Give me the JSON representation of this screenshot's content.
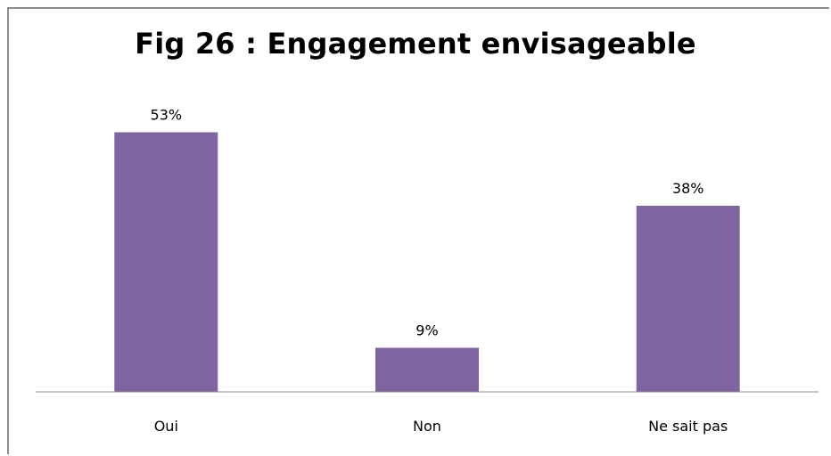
{
  "chart_data": {
    "type": "bar",
    "title": "Fig 26 : Engagement envisageable",
    "categories": [
      "Oui",
      "Non",
      "Ne sait pas"
    ],
    "values": [
      53,
      9,
      38
    ],
    "value_labels": [
      "53%",
      "9%",
      "38%"
    ],
    "xlabel": "",
    "ylabel": "",
    "ylim": [
      0,
      60
    ],
    "grid": false,
    "legend": "none",
    "bar_color": "#8064a2",
    "axis_color": "#8c8c8c"
  }
}
